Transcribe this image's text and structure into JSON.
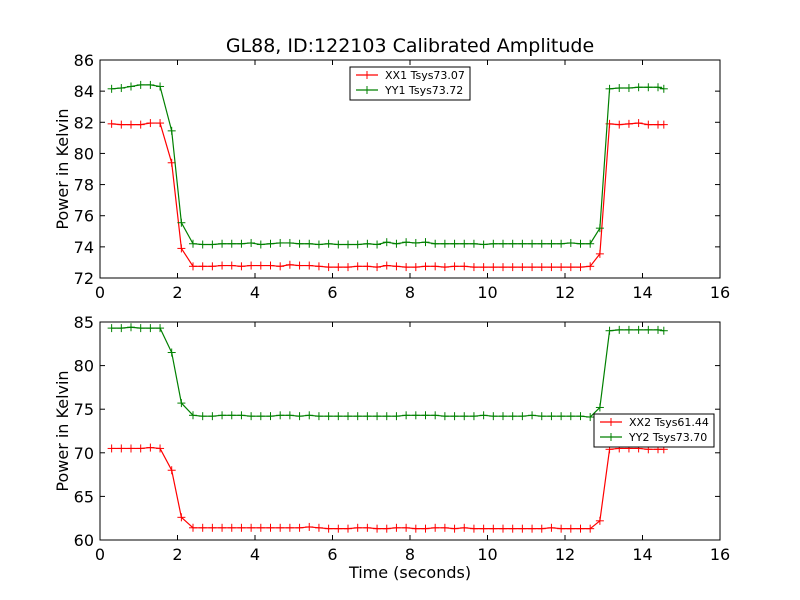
{
  "chart_data": [
    {
      "type": "line",
      "title": "GL88, ID:122103 Calibrated Amplitude",
      "xlabel": "",
      "ylabel": "Power in Kelvin",
      "xlim": [
        0,
        16
      ],
      "ylim": [
        72,
        86
      ],
      "xticks": [
        "0",
        "2",
        "4",
        "6",
        "8",
        "10",
        "12",
        "14",
        "16"
      ],
      "yticks": [
        "72",
        "74",
        "76",
        "78",
        "80",
        "82",
        "84",
        "86"
      ],
      "legend_position": "upper-center",
      "x": [
        0.3,
        0.55,
        0.8,
        1.05,
        1.3,
        1.55,
        1.85,
        2.1,
        2.4,
        2.65,
        2.9,
        3.15,
        3.4,
        3.65,
        3.9,
        4.15,
        4.4,
        4.65,
        4.9,
        5.15,
        5.4,
        5.65,
        5.9,
        6.15,
        6.4,
        6.65,
        6.9,
        7.15,
        7.4,
        7.65,
        7.9,
        8.15,
        8.4,
        8.65,
        8.9,
        9.15,
        9.4,
        9.65,
        9.9,
        10.15,
        10.4,
        10.65,
        10.9,
        11.15,
        11.4,
        11.65,
        11.9,
        12.15,
        12.4,
        12.65,
        12.9,
        13.15,
        13.4,
        13.65,
        13.9,
        14.15,
        14.4,
        14.55
      ],
      "series": [
        {
          "name": "XX1 Tsys73.07",
          "color": "#ff0000",
          "values": [
            81.9,
            81.85,
            81.85,
            81.85,
            81.95,
            81.95,
            79.4,
            73.9,
            72.75,
            72.75,
            72.75,
            72.8,
            72.8,
            72.75,
            72.8,
            72.8,
            72.8,
            72.75,
            72.85,
            72.8,
            72.8,
            72.75,
            72.7,
            72.7,
            72.7,
            72.75,
            72.75,
            72.7,
            72.8,
            72.75,
            72.7,
            72.7,
            72.75,
            72.75,
            72.7,
            72.75,
            72.75,
            72.7,
            72.7,
            72.7,
            72.7,
            72.7,
            72.7,
            72.7,
            72.7,
            72.7,
            72.7,
            72.7,
            72.7,
            72.75,
            73.55,
            81.9,
            81.85,
            81.9,
            81.95,
            81.85,
            81.85,
            81.85
          ]
        },
        {
          "name": "YY1 Tsys73.72",
          "color": "#008000",
          "values": [
            84.15,
            84.2,
            84.3,
            84.4,
            84.4,
            84.3,
            81.45,
            75.55,
            74.2,
            74.15,
            74.15,
            74.2,
            74.2,
            74.2,
            74.25,
            74.15,
            74.2,
            74.25,
            74.25,
            74.2,
            74.2,
            74.15,
            74.2,
            74.15,
            74.15,
            74.15,
            74.2,
            74.15,
            74.3,
            74.2,
            74.3,
            74.25,
            74.3,
            74.2,
            74.2,
            74.2,
            74.2,
            74.2,
            74.15,
            74.2,
            74.2,
            74.2,
            74.2,
            74.2,
            74.2,
            74.2,
            74.2,
            74.25,
            74.2,
            74.2,
            75.2,
            84.15,
            84.2,
            84.2,
            84.25,
            84.25,
            84.25,
            84.15
          ]
        }
      ]
    },
    {
      "type": "line",
      "title": "",
      "xlabel": "Time (seconds)",
      "ylabel": "Power in Kelvin",
      "xlim": [
        0,
        16
      ],
      "ylim": [
        60,
        85
      ],
      "xticks": [
        "0",
        "2",
        "4",
        "6",
        "8",
        "10",
        "12",
        "14",
        "16"
      ],
      "yticks": [
        "60",
        "65",
        "70",
        "75",
        "80",
        "85"
      ],
      "legend_position": "center-right",
      "x": [
        0.3,
        0.55,
        0.8,
        1.05,
        1.3,
        1.55,
        1.85,
        2.1,
        2.4,
        2.65,
        2.9,
        3.15,
        3.4,
        3.65,
        3.9,
        4.15,
        4.4,
        4.65,
        4.9,
        5.15,
        5.4,
        5.65,
        5.9,
        6.15,
        6.4,
        6.65,
        6.9,
        7.15,
        7.4,
        7.65,
        7.9,
        8.15,
        8.4,
        8.65,
        8.9,
        9.15,
        9.4,
        9.65,
        9.9,
        10.15,
        10.4,
        10.65,
        10.9,
        11.15,
        11.4,
        11.65,
        11.9,
        12.15,
        12.4,
        12.65,
        12.9,
        13.15,
        13.4,
        13.65,
        13.9,
        14.15,
        14.4,
        14.55
      ],
      "series": [
        {
          "name": "XX2 Tsys61.44",
          "color": "#ff0000",
          "values": [
            70.5,
            70.5,
            70.5,
            70.5,
            70.6,
            70.5,
            68.0,
            62.6,
            61.4,
            61.4,
            61.4,
            61.4,
            61.4,
            61.4,
            61.4,
            61.4,
            61.4,
            61.4,
            61.4,
            61.4,
            61.5,
            61.4,
            61.3,
            61.3,
            61.3,
            61.4,
            61.4,
            61.3,
            61.3,
            61.4,
            61.4,
            61.3,
            61.3,
            61.4,
            61.4,
            61.3,
            61.4,
            61.3,
            61.3,
            61.3,
            61.3,
            61.3,
            61.3,
            61.3,
            61.3,
            61.4,
            61.3,
            61.3,
            61.3,
            61.3,
            62.2,
            70.4,
            70.5,
            70.5,
            70.5,
            70.4,
            70.4,
            70.4
          ]
        },
        {
          "name": "YY2 Tsys73.70",
          "color": "#008000",
          "values": [
            84.3,
            84.3,
            84.4,
            84.3,
            84.3,
            84.3,
            81.5,
            75.7,
            74.3,
            74.2,
            74.2,
            74.3,
            74.3,
            74.3,
            74.2,
            74.2,
            74.2,
            74.3,
            74.3,
            74.2,
            74.3,
            74.2,
            74.2,
            74.2,
            74.2,
            74.2,
            74.2,
            74.2,
            74.2,
            74.2,
            74.3,
            74.3,
            74.3,
            74.3,
            74.2,
            74.2,
            74.2,
            74.2,
            74.3,
            74.2,
            74.2,
            74.2,
            74.2,
            74.3,
            74.2,
            74.2,
            74.2,
            74.2,
            74.2,
            74.1,
            75.2,
            84.0,
            84.1,
            84.1,
            84.1,
            84.1,
            84.1,
            84.0
          ]
        }
      ]
    }
  ]
}
